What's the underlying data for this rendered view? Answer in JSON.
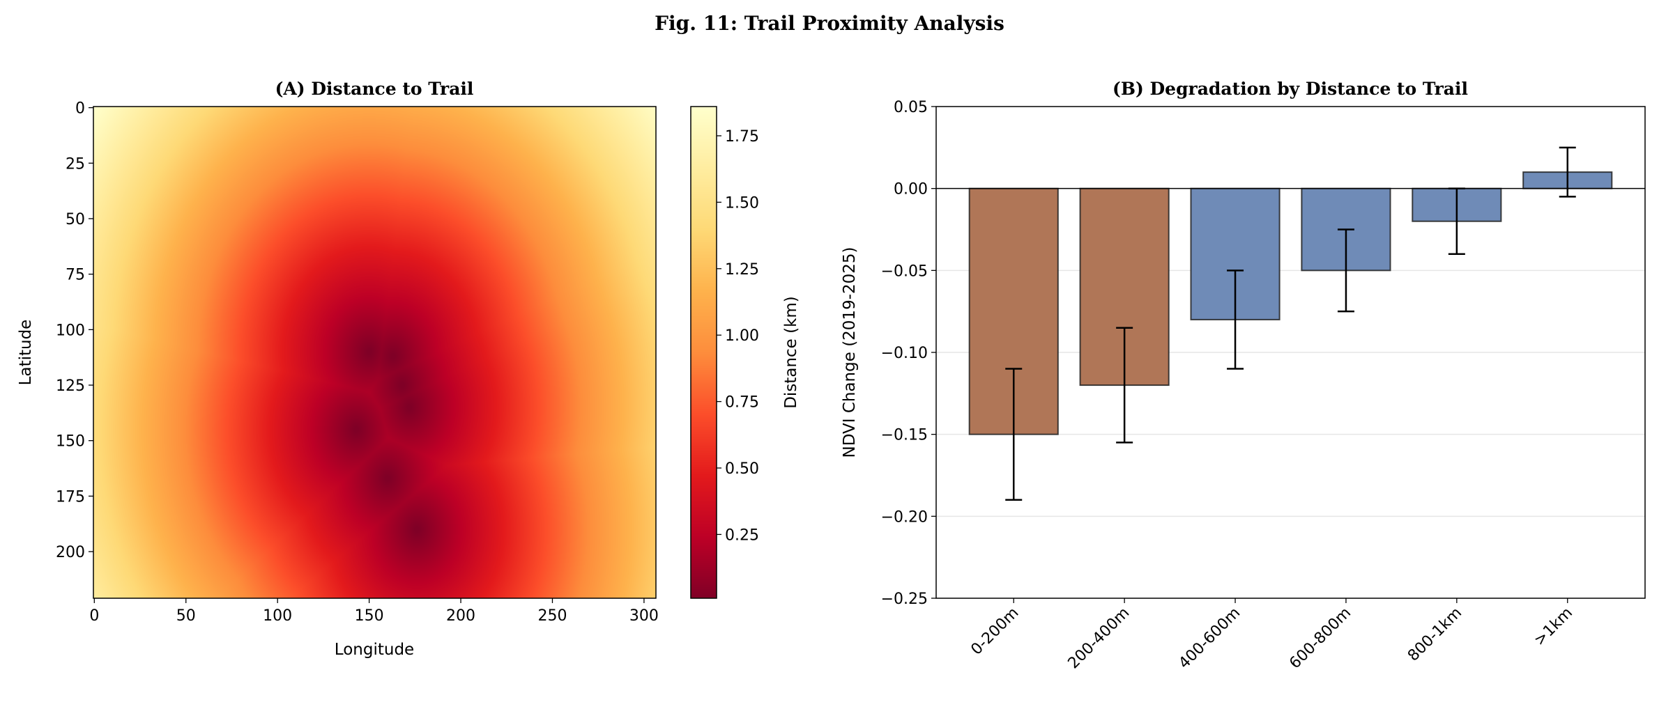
{
  "figure": {
    "title": "Fig. 11: Trail Proximity Analysis"
  },
  "chart_data": [
    {
      "type": "heatmap",
      "title": "(A) Distance to Trail",
      "xlabel": "Longitude",
      "ylabel": "Latitude",
      "colorbar_label": "Distance (km)",
      "colormap": "YlOrRd_r",
      "colormap_stops": [
        "#800026",
        "#bd0026",
        "#e31a1c",
        "#fc4e2a",
        "#fd8d3c",
        "#feb24c",
        "#fed976",
        "#ffeda0",
        "#ffffcc"
      ],
      "xlim": [
        -0.5,
        306.5
      ],
      "ylim": [
        221,
        -0.5
      ],
      "xticks": [
        "0",
        "50",
        "100",
        "150",
        "200",
        "250",
        "300"
      ],
      "yticks": [
        "0",
        "25",
        "50",
        "75",
        "100",
        "125",
        "150",
        "175",
        "200"
      ],
      "clim": [
        0.01,
        1.86
      ],
      "cticks": [
        "0.25",
        "0.50",
        "0.75",
        "1.00",
        "1.25",
        "1.50",
        "1.75"
      ],
      "trail_points": [
        [
          150,
          110
        ],
        [
          163,
          112
        ],
        [
          168,
          125
        ],
        [
          172,
          135
        ],
        [
          143,
          145
        ],
        [
          160,
          167
        ],
        [
          176,
          190
        ]
      ],
      "km_per_cell": 0.01
    },
    {
      "type": "bar",
      "title": "(B) Degradation by Distance to Trail",
      "xlabel": "",
      "ylabel": "NDVI Change (2019-2025)",
      "categories": [
        "0-200m",
        "200-400m",
        "400-600m",
        "600-800m",
        "800-1km",
        ">1km"
      ],
      "values": [
        -0.15,
        -0.12,
        -0.08,
        -0.05,
        -0.02,
        0.01
      ],
      "errors": [
        0.04,
        0.035,
        0.03,
        0.025,
        0.02,
        0.015
      ],
      "colors": [
        "#b07657",
        "#b07657",
        "#6f8bb7",
        "#6f8bb7",
        "#6f8bb7",
        "#6f8bb7"
      ],
      "ylim": [
        -0.25,
        0.05
      ],
      "yticks": [
        "0.05",
        "0.00",
        "−0.05",
        "−0.10",
        "−0.15",
        "−0.20",
        "−0.25"
      ],
      "grid": "y",
      "zero_line": true
    }
  ]
}
